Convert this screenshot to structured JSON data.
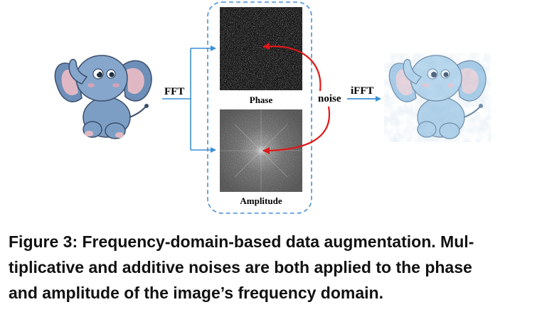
{
  "diagram": {
    "fft_label": "FFT",
    "phase_label": "Phase",
    "noise_label": "noise",
    "ifft_label": "iFFT",
    "amplitude_label": "Amplitude",
    "colors": {
      "arrow_blue": "#3a8fd6",
      "arrow_red": "#e01818",
      "dashed_box": "#4a90d9",
      "elephant_body": "#7d9ec4",
      "elephant_augmented": "#a9cde8"
    }
  },
  "caption": {
    "line1": "Figure 3: Frequency-domain-based data augmentation. Mul-",
    "line2": "tiplicative and additive noises are both applied to the phase",
    "line3": "and amplitude of the image’s frequency domain."
  }
}
